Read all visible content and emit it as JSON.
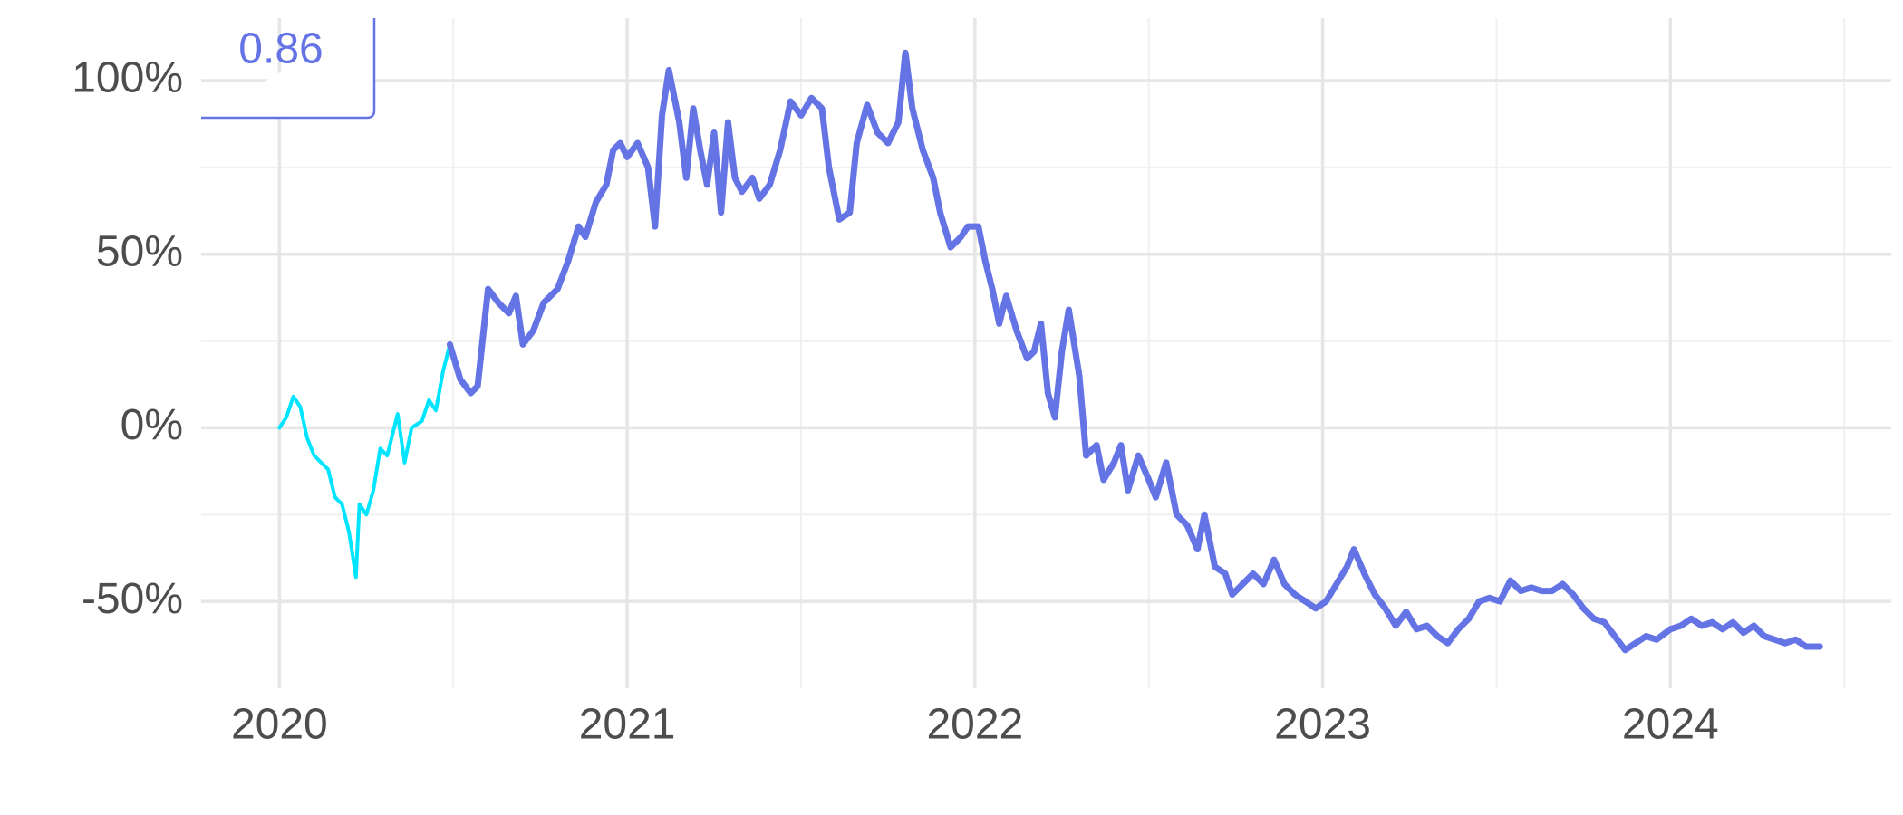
{
  "chart_data": {
    "type": "line",
    "annotation": "0.86",
    "annotation_color": "#6474e5",
    "xlim": [
      2019.775,
      2024.635
    ],
    "xticks": [
      2020,
      2021,
      2022,
      2023,
      2024
    ],
    "xminor": [
      2020.5,
      2021.5,
      2022.5,
      2023.5,
      2024.5
    ],
    "ylim": [
      -75,
      118
    ],
    "yticks": [
      {
        "value": -50,
        "label": "-50%"
      },
      {
        "value": 0,
        "label": "0%"
      },
      {
        "value": 50,
        "label": "50%"
      },
      {
        "value": 100,
        "label": "100%"
      }
    ],
    "yminor": [
      -25,
      25,
      75
    ],
    "grid": true,
    "series": [
      {
        "color": "#00e5ff",
        "width": 4,
        "x": [
          2020.0,
          2020.02,
          2020.04,
          2020.06,
          2020.08,
          2020.1,
          2020.12,
          2020.14,
          2020.16,
          2020.18,
          2020.2,
          2020.22,
          2020.23,
          2020.25,
          2020.27,
          2020.29,
          2020.31,
          2020.34,
          2020.36,
          2020.38,
          2020.41,
          2020.43,
          2020.45,
          2020.47,
          2020.49
        ],
        "values": [
          0,
          3,
          9,
          6,
          -3,
          -8,
          -10,
          -12,
          -20,
          -22,
          -30,
          -43,
          -22,
          -25,
          -18,
          -6,
          -8,
          4,
          -10,
          0,
          2,
          8,
          5,
          16,
          24
        ]
      },
      {
        "color": "#6474e5",
        "width": 7,
        "x": [
          2020.49,
          2020.52,
          2020.55,
          2020.57,
          2020.6,
          2020.63,
          2020.66,
          2020.68,
          2020.7,
          2020.73,
          2020.76,
          2020.8,
          2020.83,
          2020.86,
          2020.88,
          2020.91,
          2020.94,
          2020.96,
          2020.98,
          2021.0,
          2021.03,
          2021.06,
          2021.08,
          2021.1,
          2021.12,
          2021.15,
          2021.17,
          2021.19,
          2021.21,
          2021.23,
          2021.25,
          2021.27,
          2021.29,
          2021.31,
          2021.33,
          2021.36,
          2021.38,
          2021.41,
          2021.44,
          2021.47,
          2021.5,
          2021.53,
          2021.56,
          2021.58,
          2021.61,
          2021.64,
          2021.66,
          2021.69,
          2021.72,
          2021.75,
          2021.78,
          2021.8,
          2021.82,
          2021.85,
          2021.88,
          2021.9,
          2021.93,
          2021.96,
          2021.98,
          2022.01,
          2022.03,
          2022.05,
          2022.07,
          2022.09,
          2022.12,
          2022.15,
          2022.17,
          2022.19,
          2022.21,
          2022.23,
          2022.25,
          2022.27,
          2022.3,
          2022.32,
          2022.35,
          2022.37,
          2022.4,
          2022.42,
          2022.44,
          2022.47,
          2022.5,
          2022.52,
          2022.55,
          2022.58,
          2022.61,
          2022.64,
          2022.66,
          2022.69,
          2022.72,
          2022.74,
          2022.77,
          2022.8,
          2022.83,
          2022.86,
          2022.89,
          2022.92,
          2022.95,
          2022.98,
          2023.01,
          2023.04,
          2023.07,
          2023.09,
          2023.12,
          2023.15,
          2023.18,
          2023.21,
          2023.24,
          2023.27,
          2023.3,
          2023.33,
          2023.36,
          2023.39,
          2023.42,
          2023.45,
          2023.48,
          2023.51,
          2023.54,
          2023.57,
          2023.6,
          2023.63,
          2023.66,
          2023.69,
          2023.72,
          2023.75,
          2023.78,
          2023.81,
          2023.84,
          2023.87,
          2023.9,
          2023.93,
          2023.96,
          2024.0,
          2024.03,
          2024.06,
          2024.09,
          2024.12,
          2024.15,
          2024.18,
          2024.21,
          2024.24,
          2024.27,
          2024.3,
          2024.33,
          2024.36,
          2024.39,
          2024.43
        ],
        "values": [
          24,
          14,
          10,
          12,
          40,
          36,
          33,
          38,
          24,
          28,
          36,
          40,
          48,
          58,
          55,
          65,
          70,
          80,
          82,
          78,
          82,
          75,
          58,
          90,
          103,
          88,
          72,
          92,
          80,
          70,
          85,
          62,
          88,
          72,
          68,
          72,
          66,
          70,
          80,
          94,
          90,
          95,
          92,
          75,
          60,
          62,
          82,
          93,
          85,
          82,
          88,
          108,
          92,
          80,
          72,
          62,
          52,
          55,
          58,
          58,
          48,
          40,
          30,
          38,
          28,
          20,
          22,
          30,
          10,
          3,
          22,
          34,
          15,
          -8,
          -5,
          -15,
          -10,
          -5,
          -18,
          -8,
          -15,
          -20,
          -10,
          -25,
          -28,
          -35,
          -25,
          -40,
          -42,
          -48,
          -45,
          -42,
          -45,
          -38,
          -45,
          -48,
          -50,
          -52,
          -50,
          -45,
          -40,
          -35,
          -42,
          -48,
          -52,
          -57,
          -53,
          -58,
          -57,
          -60,
          -62,
          -58,
          -55,
          -50,
          -49,
          -50,
          -44,
          -47,
          -46,
          -47,
          -47,
          -45,
          -48,
          -52,
          -55,
          -56,
          -60,
          -64,
          -62,
          -60,
          -61,
          -58,
          -57,
          -55,
          -57,
          -56,
          -58,
          -56,
          -59,
          -57,
          -60,
          -61,
          -62,
          -61,
          -63,
          -63
        ]
      }
    ]
  }
}
